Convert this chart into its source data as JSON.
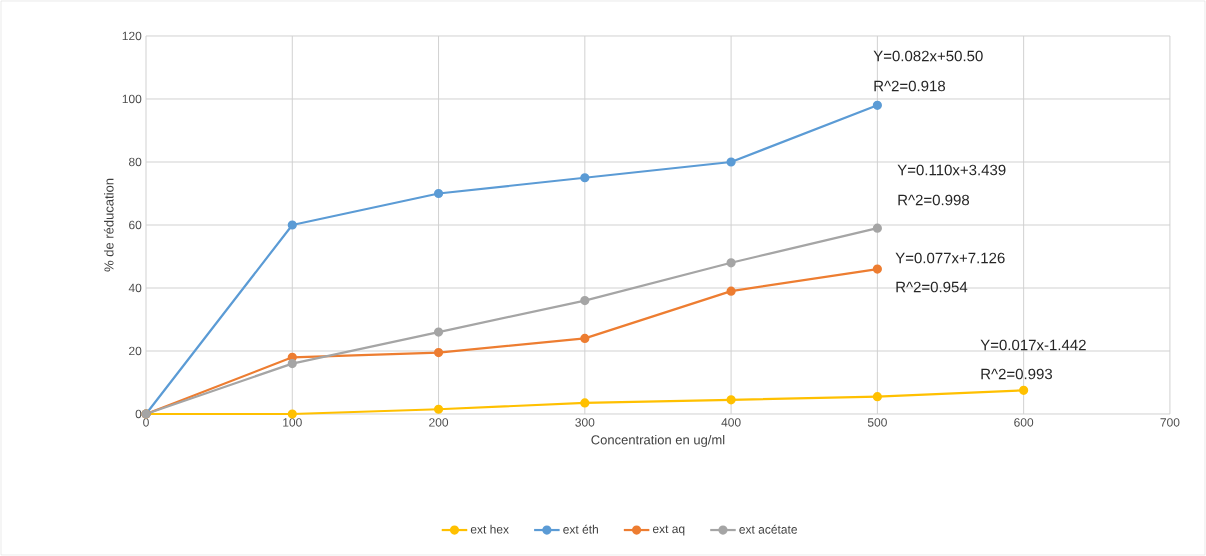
{
  "chart_data": {
    "type": "line",
    "xlabel": "Concentration en ug/ml",
    "ylabel": "% de réducation",
    "x": [
      0,
      100,
      200,
      300,
      400,
      500,
      600
    ],
    "series": [
      {
        "name": "ext hex",
        "color": "#ffc000",
        "values": [
          0,
          0,
          1.5,
          3.5,
          4.5,
          5.5,
          7.5
        ]
      },
      {
        "name": "ext éth",
        "color": "#5b9bd5",
        "values": [
          0,
          60,
          70,
          75,
          80,
          98,
          null
        ]
      },
      {
        "name": "ext aq",
        "color": "#ed7d31",
        "values": [
          0,
          18,
          19.5,
          24,
          39,
          46,
          null
        ]
      },
      {
        "name": "ext acétate",
        "color": "#a5a5a5",
        "values": [
          0,
          16,
          26,
          36,
          48,
          59,
          null
        ]
      }
    ],
    "annotations": [
      "Y=0.082x+50.50",
      "R^2=0.918",
      "Y=0.110x+3.439",
      "R^2=0.998",
      "Y=0.077x+7.126",
      "R^2=0.954",
      "Y=0.017x-1.442",
      "R^2=0.993"
    ],
    "xlim": [
      0,
      700
    ],
    "ylim": [
      0,
      120
    ],
    "xticks": [
      0,
      100,
      200,
      300,
      400,
      500,
      600,
      700
    ],
    "yticks": [
      0,
      20,
      40,
      60,
      80,
      100,
      120
    ],
    "grid": true,
    "legend": "bottom",
    "marker": "circle",
    "line_style": "solid"
  }
}
